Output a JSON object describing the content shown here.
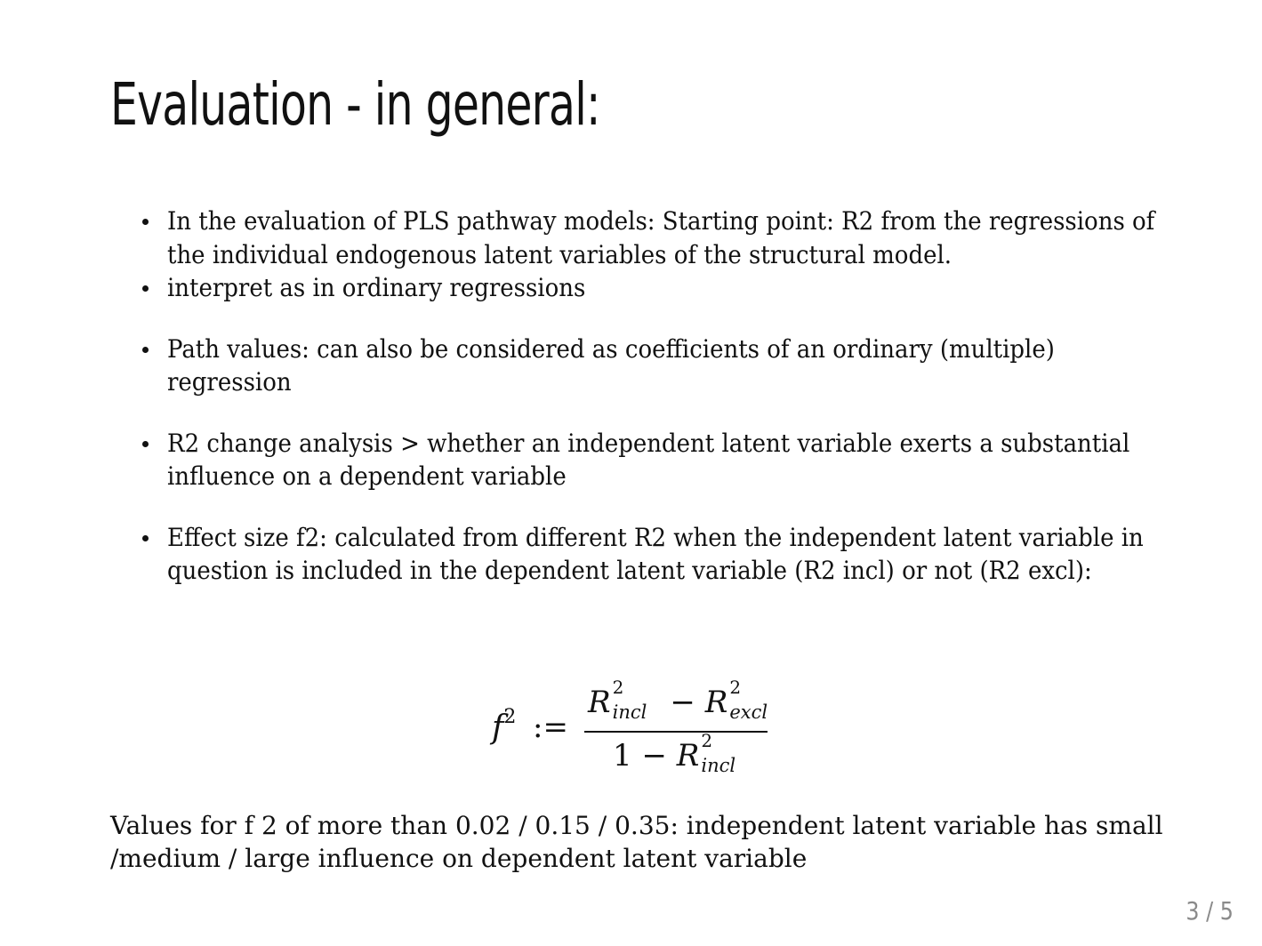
{
  "slide": {
    "title": "Evaluation - in general:",
    "bullets": [
      "In the evaluation of PLS pathway models: Starting point: R2 from the regressions of the individual endogenous latent variables of the structural model.",
      "interpret as in ordinary regressions",
      "Path values: can also be considered as coefficients of an ordinary (multiple) regression",
      "R2 change analysis > whether an independent latent variable exerts a substantial influence on a dependent variable",
      "Effect size f2: calculated from different R2 when the independent latent variable in question is included in the dependent latent variable (R2 incl) or not (R2 excl):"
    ],
    "formula": {
      "lhs": "f",
      "lhs_sup": "2",
      "assign": ":=",
      "num_R1": "R",
      "num_R1_sup": "2",
      "num_R1_sub": "incl",
      "num_minus": "−",
      "num_R2": "R",
      "num_R2_sup": "2",
      "num_R2_sub": "excl",
      "den_one": "1 −",
      "den_R": "R",
      "den_R_sup": "2",
      "den_R_sub": "incl"
    },
    "footer_text": "Values for f 2 of more than 0.02 / 0.15 / 0.35: independent latent variable has small /medium / large influence on dependent latent variable",
    "page_number": "3 / 5"
  }
}
